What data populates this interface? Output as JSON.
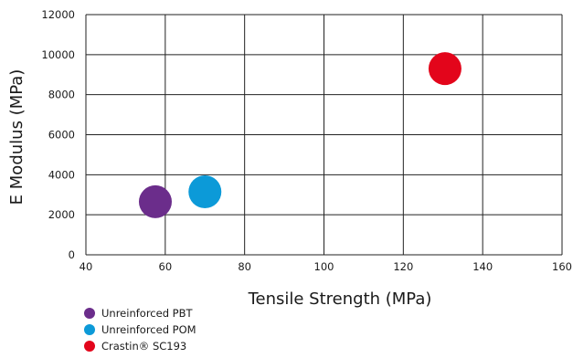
{
  "chart_data": {
    "type": "scatter",
    "title": "",
    "xlabel": "Tensile Strength (MPa)",
    "ylabel": "E Modulus (MPa)",
    "xlim": [
      40,
      160
    ],
    "ylim": [
      0,
      12000
    ],
    "x_ticks": [
      40,
      60,
      80,
      100,
      120,
      140,
      160
    ],
    "y_ticks": [
      0,
      2000,
      4000,
      6000,
      8000,
      10000,
      12000
    ],
    "grid": true,
    "legend_position": "bottom-left",
    "series": [
      {
        "name": "Unreinforced PBT",
        "color": "#6b2d8b",
        "x": [
          57.5
        ],
        "y": [
          2650
        ]
      },
      {
        "name": "Unreinforced POM",
        "color": "#0c9ad8",
        "x": [
          70
        ],
        "y": [
          3150
        ]
      },
      {
        "name": "Crastin® SC193",
        "color": "#e3051b",
        "x": [
          130.5
        ],
        "y": [
          9300
        ]
      }
    ]
  }
}
